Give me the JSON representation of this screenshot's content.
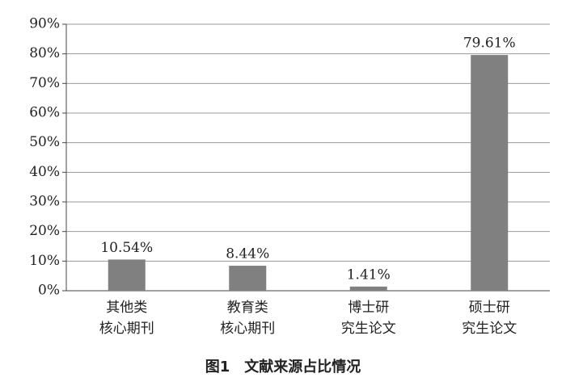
{
  "chart_data": {
    "type": "bar",
    "title": "图1　文献来源占比情况",
    "categories": [
      "其他类\n核心期刊",
      "教育类\n核心期刊",
      "博士研\n究生论文",
      "硕士研\n究生论文"
    ],
    "values": [
      10.54,
      8.44,
      1.41,
      79.61
    ],
    "value_labels": [
      "10.54%",
      "8.44%",
      "1.41%",
      "79.61%"
    ],
    "color": "#808080",
    "ylim": [
      0,
      90
    ],
    "yticks": [
      {
        "value": 0,
        "label": "0%"
      },
      {
        "value": 10,
        "label": "10%"
      },
      {
        "value": 20,
        "label": "20%"
      },
      {
        "value": 30,
        "label": "30%"
      },
      {
        "value": 40,
        "label": "40%"
      },
      {
        "value": 50,
        "label": "50%"
      },
      {
        "value": 60,
        "label": "60%"
      },
      {
        "value": 70,
        "label": "70%"
      },
      {
        "value": 80,
        "label": "80%"
      },
      {
        "value": 90,
        "label": "90%"
      }
    ],
    "grid": true
  }
}
